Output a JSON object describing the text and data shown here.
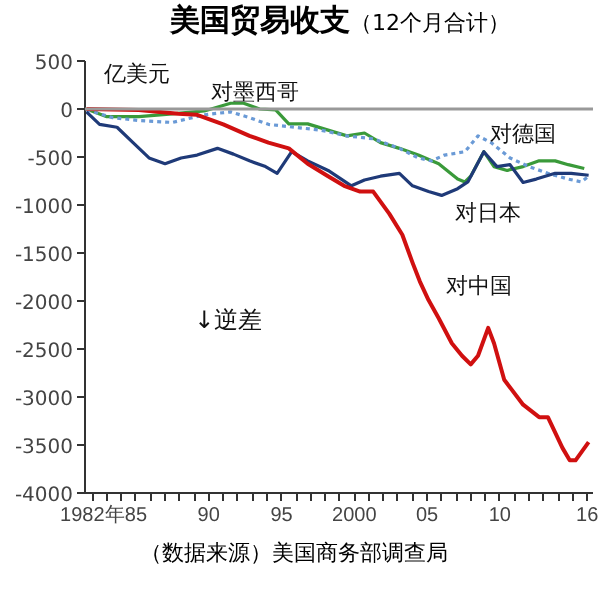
{
  "chart_data": {
    "type": "line",
    "title": "美国贸易收支",
    "subtitle": "（12个月合计）",
    "ylabel": "亿美元",
    "annotations": [
      "↓逆差",
      "（数据来源）美国商务部调查局"
    ],
    "xlim": [
      1981.5,
      2016.4
    ],
    "ylim": [
      -4000,
      500
    ],
    "yticks": [
      500,
      0,
      -500,
      -1000,
      -1500,
      -2000,
      -2500,
      -3000,
      -3500,
      -4000
    ],
    "xticks": [
      {
        "value": 1982,
        "label": "1982年"
      },
      {
        "value": 1983,
        "label": null
      },
      {
        "value": 1984,
        "label": null
      },
      {
        "value": 1985,
        "label": "85"
      },
      {
        "value": 1986,
        "label": null
      },
      {
        "value": 1987,
        "label": null
      },
      {
        "value": 1988,
        "label": null
      },
      {
        "value": 1989,
        "label": null
      },
      {
        "value": 1990,
        "label": "90"
      },
      {
        "value": 1991,
        "label": null
      },
      {
        "value": 1992,
        "label": null
      },
      {
        "value": 1993,
        "label": null
      },
      {
        "value": 1994,
        "label": null
      },
      {
        "value": 1995,
        "label": "95"
      },
      {
        "value": 1996,
        "label": null
      },
      {
        "value": 1997,
        "label": null
      },
      {
        "value": 1998,
        "label": null
      },
      {
        "value": 1999,
        "label": null
      },
      {
        "value": 2000,
        "label": "2000"
      },
      {
        "value": 2001,
        "label": null
      },
      {
        "value": 2002,
        "label": null
      },
      {
        "value": 2003,
        "label": null
      },
      {
        "value": 2004,
        "label": null
      },
      {
        "value": 2005,
        "label": "05"
      },
      {
        "value": 2006,
        "label": null
      },
      {
        "value": 2007,
        "label": null
      },
      {
        "value": 2008,
        "label": null
      },
      {
        "value": 2009,
        "label": null
      },
      {
        "value": 2010,
        "label": "10"
      },
      {
        "value": 2011,
        "label": null
      },
      {
        "value": 2012,
        "label": null
      },
      {
        "value": 2013,
        "label": null
      },
      {
        "value": 2014,
        "label": null
      },
      {
        "value": 2015,
        "label": null
      },
      {
        "value": 2016,
        "label": "16"
      }
    ],
    "ref_lines": [
      {
        "axis": "y",
        "value": 0,
        "color": "#999999"
      }
    ],
    "grid": false,
    "series": [
      {
        "name": "对墨西哥",
        "color": "#3a9a3a",
        "x": [
          1981.6,
          1983,
          1985.2,
          1987.5,
          1989.7,
          1991.5,
          1992.4,
          1993.5,
          1994.6,
          1995.5,
          1996.8,
          1998.2,
          1999.5,
          2000.7,
          2001.8,
          2003.1,
          2004.4,
          2005.8,
          2007.1,
          2007.6,
          2008,
          2008.9,
          2009.6,
          2010.5,
          2011.6,
          2012.7,
          2013.8,
          2014.7,
          2015.8
        ],
        "values": [
          0,
          -80,
          -80,
          -50,
          -20,
          60,
          60,
          0,
          -10,
          -155,
          -155,
          -220,
          -280,
          -250,
          -350,
          -410,
          -480,
          -570,
          -730,
          -760,
          -700,
          -445,
          -600,
          -640,
          -600,
          -540,
          -540,
          -580,
          -620
        ]
      },
      {
        "name": "对德国",
        "color": "#6a9ad6",
        "line_style": "dotted",
        "x": [
          1981.6,
          1983.4,
          1985.2,
          1987.5,
          1989.7,
          1991.5,
          1992.8,
          1994.1,
          1995.9,
          1997.7,
          1999.5,
          2001.3,
          2003.1,
          2004.4,
          2005.3,
          2006.2,
          2007.6,
          2008.5,
          2009.4,
          2010.7,
          2012,
          2013.3,
          2014.7,
          2015.6,
          2016.1
        ],
        "values": [
          -10,
          -90,
          -120,
          -140,
          -60,
          -30,
          -90,
          -160,
          -190,
          -220,
          -280,
          -310,
          -410,
          -510,
          -540,
          -480,
          -445,
          -280,
          -350,
          -510,
          -600,
          -670,
          -730,
          -760,
          -700
        ]
      },
      {
        "name": "对日本",
        "color": "#1f3a78",
        "x": [
          1981.6,
          1982.5,
          1983.7,
          1984.8,
          1985.9,
          1987,
          1988.1,
          1989.2,
          1990.6,
          1991.7,
          1992.8,
          1993.9,
          1994.7,
          1995.7,
          1996.8,
          1998.2,
          1999.8,
          2000.7,
          2001.8,
          2003.1,
          2004,
          2005.1,
          2006,
          2007.1,
          2007.8,
          2008.9,
          2009.8,
          2010.7,
          2011.6,
          2012.5,
          2013.8,
          2014.9,
          2016.1
        ],
        "values": [
          -30,
          -160,
          -190,
          -350,
          -510,
          -570,
          -510,
          -480,
          -410,
          -470,
          -540,
          -600,
          -670,
          -445,
          -540,
          -640,
          -800,
          -740,
          -700,
          -670,
          -800,
          -860,
          -900,
          -830,
          -760,
          -445,
          -600,
          -580,
          -765,
          -730,
          -670,
          -670,
          -690
        ]
      },
      {
        "name": "对中国",
        "color": "#d01010",
        "x": [
          1981.6,
          1985.2,
          1987.9,
          1989.2,
          1991,
          1992.8,
          1994.1,
          1995.5,
          1996.8,
          1998.2,
          1999.3,
          2000.4,
          2001.3,
          2002.4,
          2003.3,
          2004,
          2004.5,
          2005.1,
          2005.8,
          2006.7,
          2007.4,
          2008,
          2008.5,
          2009.2,
          2009.6,
          2010.3,
          2011.6,
          2012.7,
          2013.3,
          2014.3,
          2014.8,
          2015.2,
          2016.1
        ],
        "values": [
          0,
          -10,
          -50,
          -60,
          -160,
          -280,
          -350,
          -410,
          -570,
          -700,
          -800,
          -860,
          -860,
          -1090,
          -1310,
          -1600,
          -1795,
          -1990,
          -2180,
          -2440,
          -2570,
          -2660,
          -2570,
          -2280,
          -2440,
          -2820,
          -3080,
          -3210,
          -3210,
          -3530,
          -3660,
          -3660,
          -3470
        ]
      }
    ]
  }
}
